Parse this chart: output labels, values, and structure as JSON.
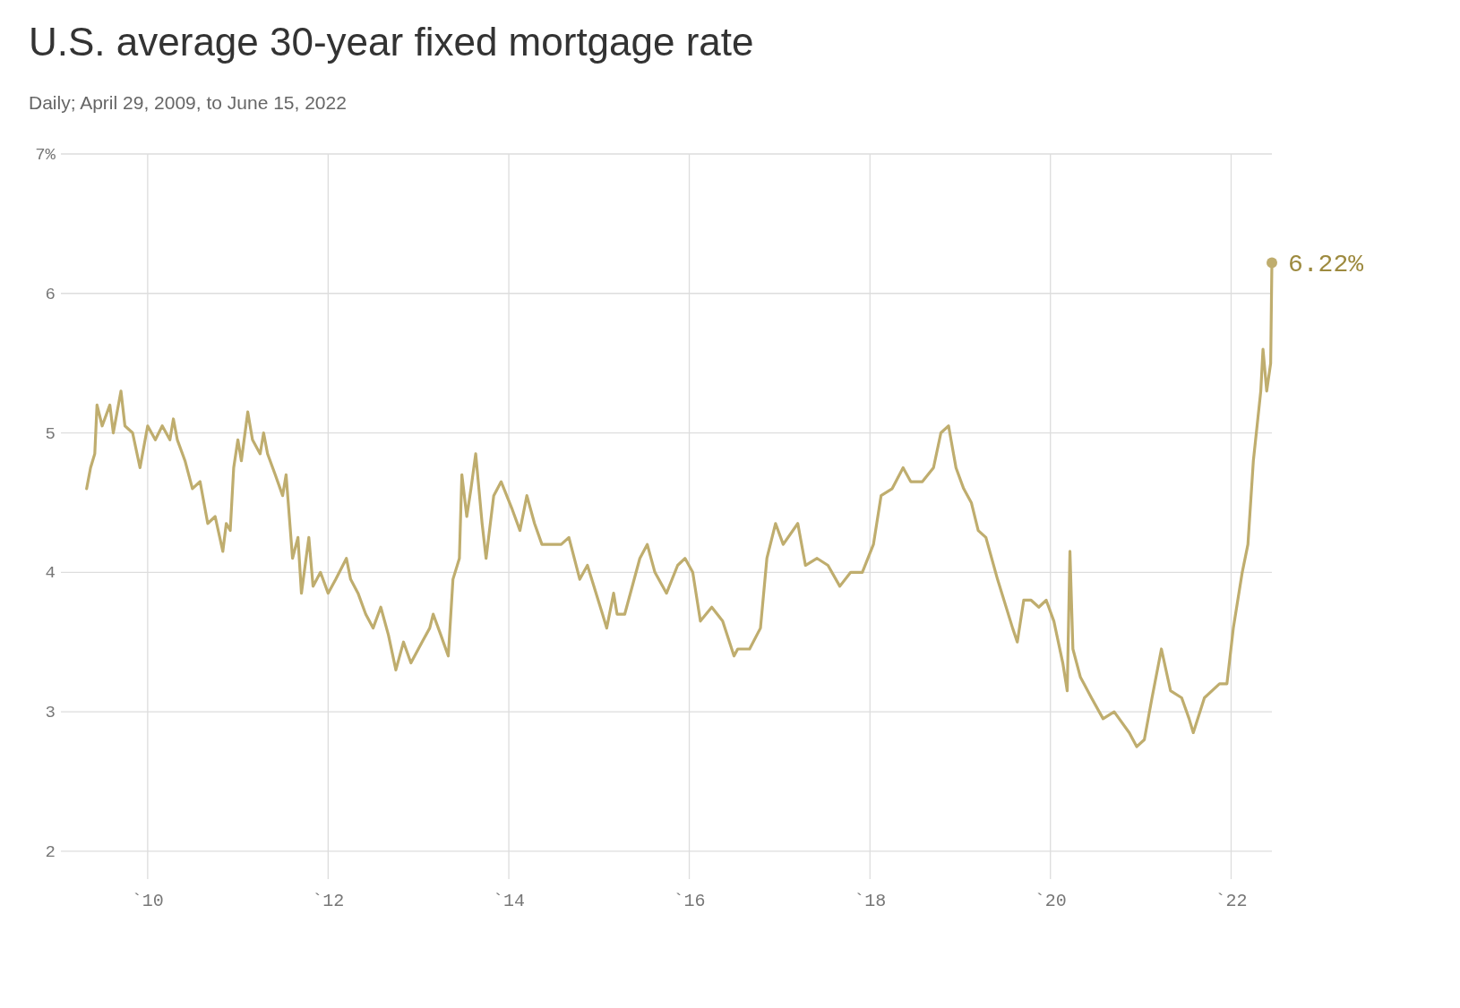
{
  "chart_data": {
    "type": "line",
    "title": "U.S. average 30-year fixed mortgage rate",
    "subtitle": "Daily; April 29, 2009, to June 15, 2022",
    "x": [
      "2009-04-29",
      "2009-05-15",
      "2009-06-01",
      "2009-06-10",
      "2009-07-01",
      "2009-08-01",
      "2009-08-15",
      "2009-09-15",
      "2009-10-01",
      "2009-11-01",
      "2009-12-01",
      "2010-01-01",
      "2010-02-01",
      "2010-03-01",
      "2010-04-01",
      "2010-04-15",
      "2010-05-01",
      "2010-06-01",
      "2010-07-01",
      "2010-08-01",
      "2010-09-01",
      "2010-10-01",
      "2010-11-01",
      "2010-11-15",
      "2010-12-01",
      "2010-12-15",
      "2011-01-01",
      "2011-01-15",
      "2011-02-10",
      "2011-03-01",
      "2011-04-01",
      "2011-04-15",
      "2011-05-01",
      "2011-06-01",
      "2011-07-01",
      "2011-07-15",
      "2011-08-10",
      "2011-09-01",
      "2011-09-15",
      "2011-10-15",
      "2011-11-01",
      "2011-12-01",
      "2012-01-01",
      "2012-02-01",
      "2012-03-15",
      "2012-04-01",
      "2012-05-01",
      "2012-06-01",
      "2012-07-01",
      "2012-08-01",
      "2012-09-01",
      "2012-10-01",
      "2012-11-01",
      "2012-12-01",
      "2013-01-15",
      "2013-02-15",
      "2013-03-01",
      "2013-04-01",
      "2013-05-01",
      "2013-05-20",
      "2013-06-15",
      "2013-06-25",
      "2013-07-15",
      "2013-08-01",
      "2013-08-20",
      "2013-09-15",
      "2013-10-01",
      "2013-11-01",
      "2013-12-01",
      "2014-01-15",
      "2014-02-15",
      "2014-03-15",
      "2014-04-15",
      "2014-05-15",
      "2014-06-15",
      "2014-08-01",
      "2014-09-01",
      "2014-10-15",
      "2014-11-15",
      "2015-01-15",
      "2015-02-01",
      "2015-03-01",
      "2015-03-15",
      "2015-04-15",
      "2015-06-15",
      "2015-07-15",
      "2015-08-15",
      "2015-10-01",
      "2015-11-15",
      "2015-12-15",
      "2016-01-15",
      "2016-02-15",
      "2016-04-01",
      "2016-05-15",
      "2016-06-30",
      "2016-07-15",
      "2016-09-01",
      "2016-10-15",
      "2016-11-10",
      "2016-12-15",
      "2017-01-15",
      "2017-03-15",
      "2017-04-15",
      "2017-06-01",
      "2017-07-15",
      "2017-09-01",
      "2017-10-15",
      "2017-12-01",
      "2018-01-15",
      "2018-02-15",
      "2018-04-01",
      "2018-05-15",
      "2018-06-15",
      "2018-08-01",
      "2018-09-15",
      "2018-10-15",
      "2018-11-15",
      "2018-12-15",
      "2019-01-15",
      "2019-02-15",
      "2019-03-15",
      "2019-04-15",
      "2019-06-01",
      "2019-08-01",
      "2019-08-20",
      "2019-09-15",
      "2019-10-15",
      "2019-11-15",
      "2019-12-15",
      "2020-01-15",
      "2020-02-20",
      "2020-03-09",
      "2020-03-20",
      "2020-04-01",
      "2020-05-01",
      "2020-06-15",
      "2020-08-01",
      "2020-09-15",
      "2020-11-15",
      "2020-12-15",
      "2021-01-15",
      "2021-02-15",
      "2021-03-25",
      "2021-05-01",
      "2021-06-15",
      "2021-07-15",
      "2021-08-01",
      "2021-09-15",
      "2021-11-15",
      "2021-12-15",
      "2022-01-10",
      "2022-02-15",
      "2022-03-10",
      "2022-04-01",
      "2022-05-01",
      "2022-05-10",
      "2022-05-25",
      "2022-06-10",
      "2022-06-15"
    ],
    "series": [
      {
        "color": "#bfad6e",
        "values": [
          4.6,
          4.75,
          4.85,
          5.2,
          5.05,
          5.2,
          5.0,
          5.3,
          5.05,
          5.0,
          4.75,
          5.05,
          4.95,
          5.05,
          4.95,
          5.1,
          4.95,
          4.8,
          4.6,
          4.65,
          4.35,
          4.4,
          4.15,
          4.35,
          4.3,
          4.75,
          4.95,
          4.8,
          5.15,
          4.95,
          4.85,
          5.0,
          4.85,
          4.7,
          4.55,
          4.7,
          4.1,
          4.25,
          3.85,
          4.25,
          3.9,
          4.0,
          3.85,
          3.95,
          4.1,
          3.95,
          3.85,
          3.7,
          3.6,
          3.75,
          3.55,
          3.3,
          3.5,
          3.35,
          3.5,
          3.6,
          3.7,
          3.55,
          3.4,
          3.95,
          4.1,
          4.7,
          4.4,
          4.6,
          4.85,
          4.35,
          4.1,
          4.55,
          4.65,
          4.45,
          4.3,
          4.55,
          4.35,
          4.2,
          4.2,
          4.2,
          4.25,
          3.95,
          4.05,
          3.7,
          3.6,
          3.85,
          3.7,
          3.7,
          4.1,
          4.2,
          4.0,
          3.85,
          4.05,
          4.1,
          4.0,
          3.65,
          3.75,
          3.65,
          3.4,
          3.45,
          3.45,
          3.6,
          4.1,
          4.35,
          4.2,
          4.35,
          4.05,
          4.1,
          4.05,
          3.9,
          4.0,
          4.0,
          4.2,
          4.55,
          4.6,
          4.75,
          4.65,
          4.65,
          4.75,
          5.0,
          5.05,
          4.75,
          4.6,
          4.5,
          4.3,
          4.25,
          3.95,
          3.6,
          3.5,
          3.8,
          3.8,
          3.75,
          3.8,
          3.65,
          3.35,
          3.15,
          4.15,
          3.45,
          3.25,
          3.1,
          2.95,
          3.0,
          2.85,
          2.75,
          2.8,
          3.1,
          3.45,
          3.15,
          3.1,
          2.95,
          2.85,
          3.1,
          3.2,
          3.2,
          3.6,
          4.0,
          4.2,
          4.8,
          5.3,
          5.6,
          5.3,
          5.5,
          6.22
        ]
      }
    ],
    "xlim": [
      "2009-01-15",
      "2022-06-15"
    ],
    "xticks": [
      {
        "value": "2010-01-01",
        "label": "`10"
      },
      {
        "value": "2012-01-01",
        "label": "`12"
      },
      {
        "value": "2014-01-01",
        "label": "`14"
      },
      {
        "value": "2016-01-01",
        "label": "`16"
      },
      {
        "value": "2018-01-01",
        "label": "`18"
      },
      {
        "value": "2020-01-01",
        "label": "`20"
      },
      {
        "value": "2022-01-01",
        "label": "`22"
      }
    ],
    "ylim": [
      1.8,
      7
    ],
    "yticks": [
      2,
      3,
      4,
      5,
      6,
      {
        "value": 7,
        "label": "7%"
      }
    ],
    "grid": true,
    "annotations": [
      {
        "text": "6.22%",
        "x": "2022-06-15",
        "y": 6.22
      }
    ]
  }
}
